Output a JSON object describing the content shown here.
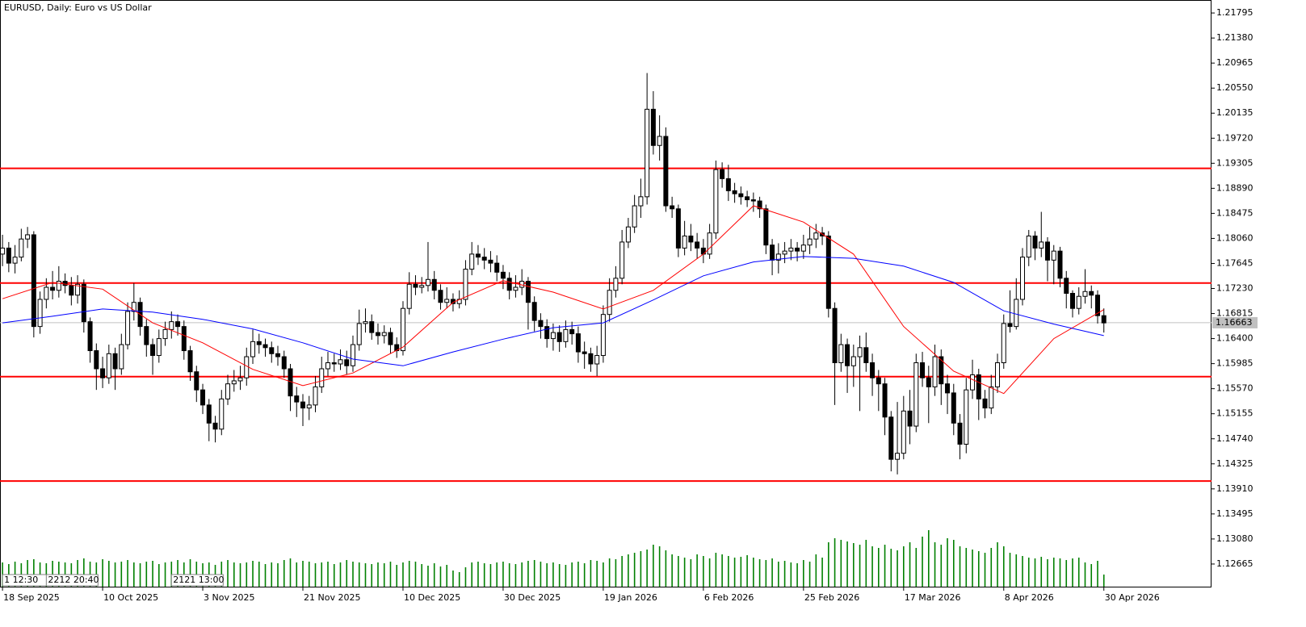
{
  "chart_data": {
    "type": "candlestick",
    "title": "EURUSD, Daily:  Euro vs US Dollar",
    "up_color": "#ffffff",
    "down_color": "#000000",
    "xlim": [
      -0.4,
      193.2
    ],
    "ylim": [
      1.1229,
      1.2201
    ],
    "yticks": [
      1.21795,
      {
        "value": 1.2138,
        "label": "1.21380"
      },
      1.20965,
      {
        "value": 1.2055,
        "label": "1.20550"
      },
      1.20135,
      {
        "value": 1.1972,
        "label": "1.19720"
      },
      1.19305,
      {
        "value": 1.1889,
        "label": "1.18890"
      },
      1.18475,
      {
        "value": 1.1806,
        "label": "1.18060"
      },
      1.17645,
      {
        "value": 1.1723,
        "label": "1.17230"
      },
      1.16815,
      {
        "value": 1.164,
        "label": "1.16400"
      },
      1.15985,
      {
        "value": 1.1557,
        "label": "1.15570"
      },
      1.15155,
      {
        "value": 1.1474,
        "label": "1.14740"
      },
      1.14325,
      {
        "value": 1.1391,
        "label": "1.13910"
      },
      1.13495,
      {
        "value": 1.1308,
        "label": "1.13080"
      },
      1.12665
    ],
    "xticks": [
      {
        "value": 0,
        "label": "18 Sep 2025"
      },
      {
        "value": 16,
        "label": "10 Oct 2025"
      },
      {
        "value": 32,
        "label": "3 Nov 2025"
      },
      {
        "value": 48,
        "label": "21 Nov 2025"
      },
      {
        "value": 64,
        "label": "10 Dec 2025"
      },
      {
        "value": 80,
        "label": "30 Dec 2025"
      },
      {
        "value": 96,
        "label": "19 Jan 2026"
      },
      {
        "value": 112,
        "label": "6 Feb 2026"
      },
      {
        "value": 128,
        "label": "25 Feb 2026"
      },
      {
        "value": 144,
        "label": "17 Mar 2026"
      },
      {
        "value": 160,
        "label": "8 Apr 2026"
      },
      {
        "value": 176,
        "label": "30 Apr 2026"
      }
    ],
    "open": [
      1.178,
      1.179,
      1.1765,
      1.1775,
      1.1805,
      1.1812,
      1.166,
      1.1705,
      1.1725,
      1.172,
      1.1735,
      1.1728,
      1.1712,
      1.173,
      1.1668,
      1.162,
      1.159,
      1.1575,
      1.1615,
      1.159,
      1.163,
      1.1685,
      1.17,
      1.166,
      1.163,
      1.1612,
      1.164,
      1.1655,
      1.1668,
      1.166,
      1.162,
      1.1585,
      1.1555,
      1.153,
      1.15,
      1.149,
      1.154,
      1.1565,
      1.157,
      1.1575,
      1.161,
      1.1635,
      1.163,
      1.1625,
      1.1615,
      1.161,
      1.159,
      1.1545,
      1.1535,
      1.1525,
      1.153,
      1.156,
      1.159,
      1.16,
      1.1598,
      1.1605,
      1.1595,
      1.163,
      1.1665,
      1.1668,
      1.165,
      1.1645,
      1.165,
      1.163,
      1.162,
      1.169,
      1.173,
      1.1725,
      1.1728,
      1.1738,
      1.172,
      1.17,
      1.1705,
      1.1698,
      1.1705,
      1.1755,
      1.178,
      1.1775,
      1.177,
      1.1765,
      1.175,
      1.174,
      1.172,
      1.1725,
      1.1735,
      1.17,
      1.167,
      1.166,
      1.164,
      1.165,
      1.1635,
      1.1655,
      1.1648,
      1.1618,
      1.1615,
      1.1598,
      1.1612,
      1.168,
      1.172,
      1.174,
      1.18,
      1.1825,
      1.186,
      1.1875,
      1.202,
      1.196,
      1.1975,
      1.186,
      1.1855,
      1.179,
      1.181,
      1.18,
      1.179,
      1.178,
      1.1815,
      1.192,
      1.1905,
      1.1885,
      1.188,
      1.1875,
      1.187,
      1.1868,
      1.1855,
      1.1795,
      1.177,
      1.178,
      1.1785,
      1.179,
      1.1785,
      1.1795,
      1.1805,
      1.1815,
      1.181,
      1.169,
      1.16,
      1.163,
      1.1595,
      1.161,
      1.1625,
      1.16,
      1.1575,
      1.1565,
      1.151,
      1.144,
      1.145,
      1.152,
      1.1495,
      1.16,
      1.1575,
      1.156,
      1.161,
      1.1565,
      1.155,
      1.15,
      1.1465,
      1.1555,
      1.158,
      1.154,
      1.1525,
      1.156,
      1.16,
      1.1665,
      1.166,
      1.1705,
      1.1775,
      1.181,
      1.179,
      1.18,
      1.177,
      1.1785,
      1.174,
      1.1715,
      1.169,
      1.171,
      1.1718,
      1.1712,
      1.1678
    ],
    "high": [
      1.1812,
      1.18,
      1.1795,
      1.1822,
      1.1825,
      1.1818,
      1.1718,
      1.174,
      1.1752,
      1.176,
      1.1748,
      1.1742,
      1.1745,
      1.1738,
      1.1675,
      1.1632,
      1.161,
      1.163,
      1.1625,
      1.1648,
      1.17,
      1.1732,
      1.1708,
      1.1672,
      1.164,
      1.1655,
      1.1668,
      1.1685,
      1.168,
      1.167,
      1.1628,
      1.1595,
      1.1565,
      1.154,
      1.1512,
      1.1555,
      1.158,
      1.1588,
      1.1595,
      1.1625,
      1.1655,
      1.1648,
      1.164,
      1.1635,
      1.1628,
      1.162,
      1.1598,
      1.156,
      1.1548,
      1.1545,
      1.1578,
      1.161,
      1.1618,
      1.1615,
      1.1622,
      1.162,
      1.1645,
      1.1688,
      1.169,
      1.168,
      1.1665,
      1.1662,
      1.1658,
      1.1642,
      1.1702,
      1.175,
      1.1745,
      1.1742,
      1.18,
      1.1752,
      1.173,
      1.1725,
      1.1715,
      1.172,
      1.177,
      1.18,
      1.1795,
      1.179,
      1.1785,
      1.1778,
      1.1762,
      1.175,
      1.1745,
      1.1755,
      1.1742,
      1.171,
      1.1682,
      1.1672,
      1.1665,
      1.1662,
      1.167,
      1.1668,
      1.166,
      1.1635,
      1.1625,
      1.1628,
      1.1695,
      1.174,
      1.176,
      1.182,
      1.184,
      1.1878,
      1.1905,
      1.208,
      1.205,
      1.201,
      1.199,
      1.1875,
      1.1862,
      1.1835,
      1.183,
      1.1815,
      1.1805,
      1.183,
      1.1935,
      1.1932,
      1.1928,
      1.1898,
      1.1892,
      1.1885,
      1.1882,
      1.1875,
      1.1862,
      1.1805,
      1.1798,
      1.18,
      1.1805,
      1.18,
      1.1812,
      1.1825,
      1.183,
      1.1825,
      1.1818,
      1.17,
      1.1648,
      1.164,
      1.163,
      1.1645,
      1.165,
      1.1615,
      1.1588,
      1.1575,
      1.152,
      1.1535,
      1.1545,
      1.1555,
      1.1615,
      1.1618,
      1.1595,
      1.163,
      1.1622,
      1.158,
      1.1565,
      1.1515,
      1.1575,
      1.1605,
      1.159,
      1.1555,
      1.158,
      1.1615,
      1.168,
      1.172,
      1.174,
      1.179,
      1.182,
      1.1818,
      1.185,
      1.1808,
      1.1795,
      1.1792,
      1.1752,
      1.172,
      1.1725,
      1.1755,
      1.1728,
      1.172,
      1.169
    ],
    "low": [
      1.176,
      1.175,
      1.1748,
      1.1768,
      1.179,
      1.1642,
      1.1648,
      1.169,
      1.1705,
      1.1708,
      1.1715,
      1.1695,
      1.1698,
      1.165,
      1.16,
      1.1555,
      1.1558,
      1.1565,
      1.1555,
      1.158,
      1.1622,
      1.167,
      1.1645,
      1.161,
      1.158,
      1.16,
      1.1628,
      1.164,
      1.1645,
      1.1605,
      1.157,
      1.1535,
      1.1515,
      1.147,
      1.1468,
      1.148,
      1.153,
      1.1552,
      1.1555,
      1.1562,
      1.1598,
      1.1615,
      1.161,
      1.16,
      1.1595,
      1.1575,
      1.152,
      1.151,
      1.1495,
      1.1505,
      1.1518,
      1.155,
      1.1578,
      1.1585,
      1.1588,
      1.158,
      1.1585,
      1.162,
      1.165,
      1.1638,
      1.163,
      1.1632,
      1.1615,
      1.1608,
      1.1612,
      1.168,
      1.1712,
      1.1715,
      1.1718,
      1.1705,
      1.1688,
      1.169,
      1.1685,
      1.169,
      1.1695,
      1.1745,
      1.1762,
      1.1755,
      1.175,
      1.1735,
      1.1722,
      1.1705,
      1.1708,
      1.1712,
      1.1655,
      1.1652,
      1.164,
      1.1625,
      1.162,
      1.1618,
      1.1625,
      1.163,
      1.16,
      1.159,
      1.1585,
      1.1578,
      1.16,
      1.1668,
      1.1708,
      1.173,
      1.179,
      1.1815,
      1.184,
      1.1862,
      1.1945,
      1.1935,
      1.185,
      1.184,
      1.1775,
      1.1778,
      1.1785,
      1.1772,
      1.1765,
      1.1772,
      1.1805,
      1.189,
      1.1868,
      1.1865,
      1.1862,
      1.1858,
      1.185,
      1.184,
      1.178,
      1.1745,
      1.1748,
      1.1765,
      1.177,
      1.1768,
      1.1772,
      1.178,
      1.179,
      1.1795,
      1.1675,
      1.153,
      1.1585,
      1.155,
      1.156,
      1.152,
      1.1585,
      1.1545,
      1.152,
      1.148,
      1.142,
      1.1415,
      1.144,
      1.1465,
      1.1485,
      1.156,
      1.15,
      1.1545,
      1.153,
      1.1515,
      1.148,
      1.144,
      1.145,
      1.154,
      1.1505,
      1.1508,
      1.1515,
      1.155,
      1.159,
      1.165,
      1.1655,
      1.1695,
      1.176,
      1.177,
      1.1775,
      1.1735,
      1.173,
      1.1725,
      1.169,
      1.1675,
      1.168,
      1.1698,
      1.169,
      1.1665,
      1.165
    ],
    "close": [
      1.179,
      1.1765,
      1.1775,
      1.1805,
      1.1812,
      1.166,
      1.1705,
      1.1725,
      1.172,
      1.1735,
      1.1728,
      1.1712,
      1.173,
      1.1668,
      1.162,
      1.159,
      1.1575,
      1.1615,
      1.159,
      1.163,
      1.1685,
      1.17,
      1.166,
      1.163,
      1.1612,
      1.164,
      1.1655,
      1.1668,
      1.166,
      1.162,
      1.1585,
      1.1555,
      1.153,
      1.15,
      1.149,
      1.154,
      1.1565,
      1.157,
      1.1575,
      1.161,
      1.1635,
      1.163,
      1.1625,
      1.1615,
      1.161,
      1.159,
      1.1545,
      1.1535,
      1.1525,
      1.153,
      1.156,
      1.159,
      1.16,
      1.1598,
      1.1605,
      1.1595,
      1.163,
      1.1665,
      1.1668,
      1.165,
      1.1645,
      1.165,
      1.163,
      1.162,
      1.169,
      1.173,
      1.1725,
      1.1728,
      1.1738,
      1.172,
      1.17,
      1.1705,
      1.1698,
      1.1705,
      1.1755,
      1.178,
      1.1775,
      1.177,
      1.1765,
      1.175,
      1.174,
      1.172,
      1.1725,
      1.1735,
      1.17,
      1.167,
      1.166,
      1.164,
      1.165,
      1.1635,
      1.1655,
      1.1648,
      1.1618,
      1.1615,
      1.1598,
      1.1612,
      1.168,
      1.172,
      1.174,
      1.18,
      1.1825,
      1.186,
      1.1875,
      1.202,
      1.196,
      1.1975,
      1.186,
      1.1855,
      1.179,
      1.181,
      1.18,
      1.179,
      1.178,
      1.1815,
      1.192,
      1.1905,
      1.1885,
      1.188,
      1.1875,
      1.187,
      1.1868,
      1.1855,
      1.1795,
      1.177,
      1.178,
      1.1785,
      1.179,
      1.1785,
      1.1795,
      1.1805,
      1.1815,
      1.181,
      1.169,
      1.16,
      1.163,
      1.1595,
      1.161,
      1.1625,
      1.16,
      1.1575,
      1.1565,
      1.151,
      1.144,
      1.145,
      1.152,
      1.1495,
      1.16,
      1.1575,
      1.156,
      1.161,
      1.1565,
      1.155,
      1.15,
      1.1465,
      1.1555,
      1.158,
      1.154,
      1.1525,
      1.156,
      1.16,
      1.1665,
      1.166,
      1.1705,
      1.1775,
      1.181,
      1.179,
      1.18,
      1.177,
      1.1785,
      1.174,
      1.1715,
      1.169,
      1.171,
      1.1718,
      1.1712,
      1.1678,
      1.1666
    ],
    "volume_color": "#008000",
    "volume": [
      30,
      28,
      31,
      29,
      33,
      34,
      30,
      29,
      32,
      31,
      30,
      29,
      33,
      35,
      31,
      30,
      34,
      32,
      30,
      31,
      33,
      30,
      29,
      31,
      32,
      28,
      30,
      31,
      33,
      30,
      34,
      31,
      29,
      30,
      27,
      31,
      33,
      30,
      29,
      30,
      32,
      31,
      28,
      30,
      29,
      33,
      35,
      30,
      32,
      31,
      29,
      30,
      31,
      28,
      30,
      33,
      31,
      30,
      29,
      28,
      30,
      29,
      31,
      27,
      30,
      32,
      31,
      28,
      26,
      29,
      25,
      27,
      20,
      18,
      24,
      30,
      31,
      29,
      28,
      30,
      31,
      29,
      28,
      30,
      32,
      33,
      31,
      29,
      30,
      28,
      27,
      30,
      31,
      29,
      33,
      32,
      30,
      35,
      34,
      38,
      40,
      42,
      44,
      46,
      52,
      50,
      45,
      40,
      38,
      36,
      34,
      40,
      38,
      35,
      42,
      40,
      38,
      36,
      37,
      39,
      36,
      34,
      33,
      35,
      31,
      32,
      30,
      29,
      33,
      31,
      40,
      36,
      55,
      60,
      58,
      56,
      54,
      52,
      58,
      50,
      48,
      52,
      47,
      45,
      50,
      55,
      48,
      62,
      70,
      55,
      52,
      60,
      58,
      50,
      48,
      46,
      44,
      42,
      48,
      55,
      50,
      42,
      40,
      38,
      36,
      35,
      37,
      34,
      36,
      35,
      33,
      35,
      36,
      30,
      28,
      32,
      15
    ],
    "overlays": [
      {
        "color": "#ff0000",
        "x": [
          0,
          8,
          16,
          24,
          32,
          40,
          48,
          56,
          64,
          72,
          80,
          88,
          96,
          104,
          112,
          120,
          128,
          136,
          144,
          152,
          160,
          168,
          176
        ],
        "values": [
          1.1706,
          1.1733,
          1.1722,
          1.1666,
          1.1633,
          1.1589,
          1.1562,
          1.1583,
          1.1626,
          1.17,
          1.1736,
          1.1717,
          1.1689,
          1.172,
          1.178,
          1.186,
          1.1833,
          1.178,
          1.166,
          1.1586,
          1.1549,
          1.164,
          1.1688
        ]
      },
      {
        "color": "#0000ff",
        "x": [
          0,
          8,
          16,
          24,
          32,
          40,
          48,
          56,
          64,
          72,
          80,
          88,
          96,
          104,
          112,
          120,
          128,
          136,
          144,
          152,
          160,
          168,
          176
        ],
        "values": [
          1.1666,
          1.1677,
          1.1689,
          1.1684,
          1.1672,
          1.1656,
          1.1633,
          1.1606,
          1.1595,
          1.1618,
          1.1639,
          1.1658,
          1.1666,
          1.1704,
          1.1744,
          1.1767,
          1.1776,
          1.1773,
          1.176,
          1.1733,
          1.1686,
          1.1664,
          1.1645
        ]
      }
    ],
    "levels": {
      "color": "#ff0000",
      "values": [
        1.1922,
        1.1732,
        1.1577,
        1.1404
      ]
    },
    "last_price": 1.16663,
    "markers": [
      {
        "x": 0,
        "label": "1 12:30"
      },
      {
        "x": 7,
        "label": "2212 20:40"
      },
      {
        "x": 27,
        "label": "2121 13:00"
      }
    ]
  }
}
